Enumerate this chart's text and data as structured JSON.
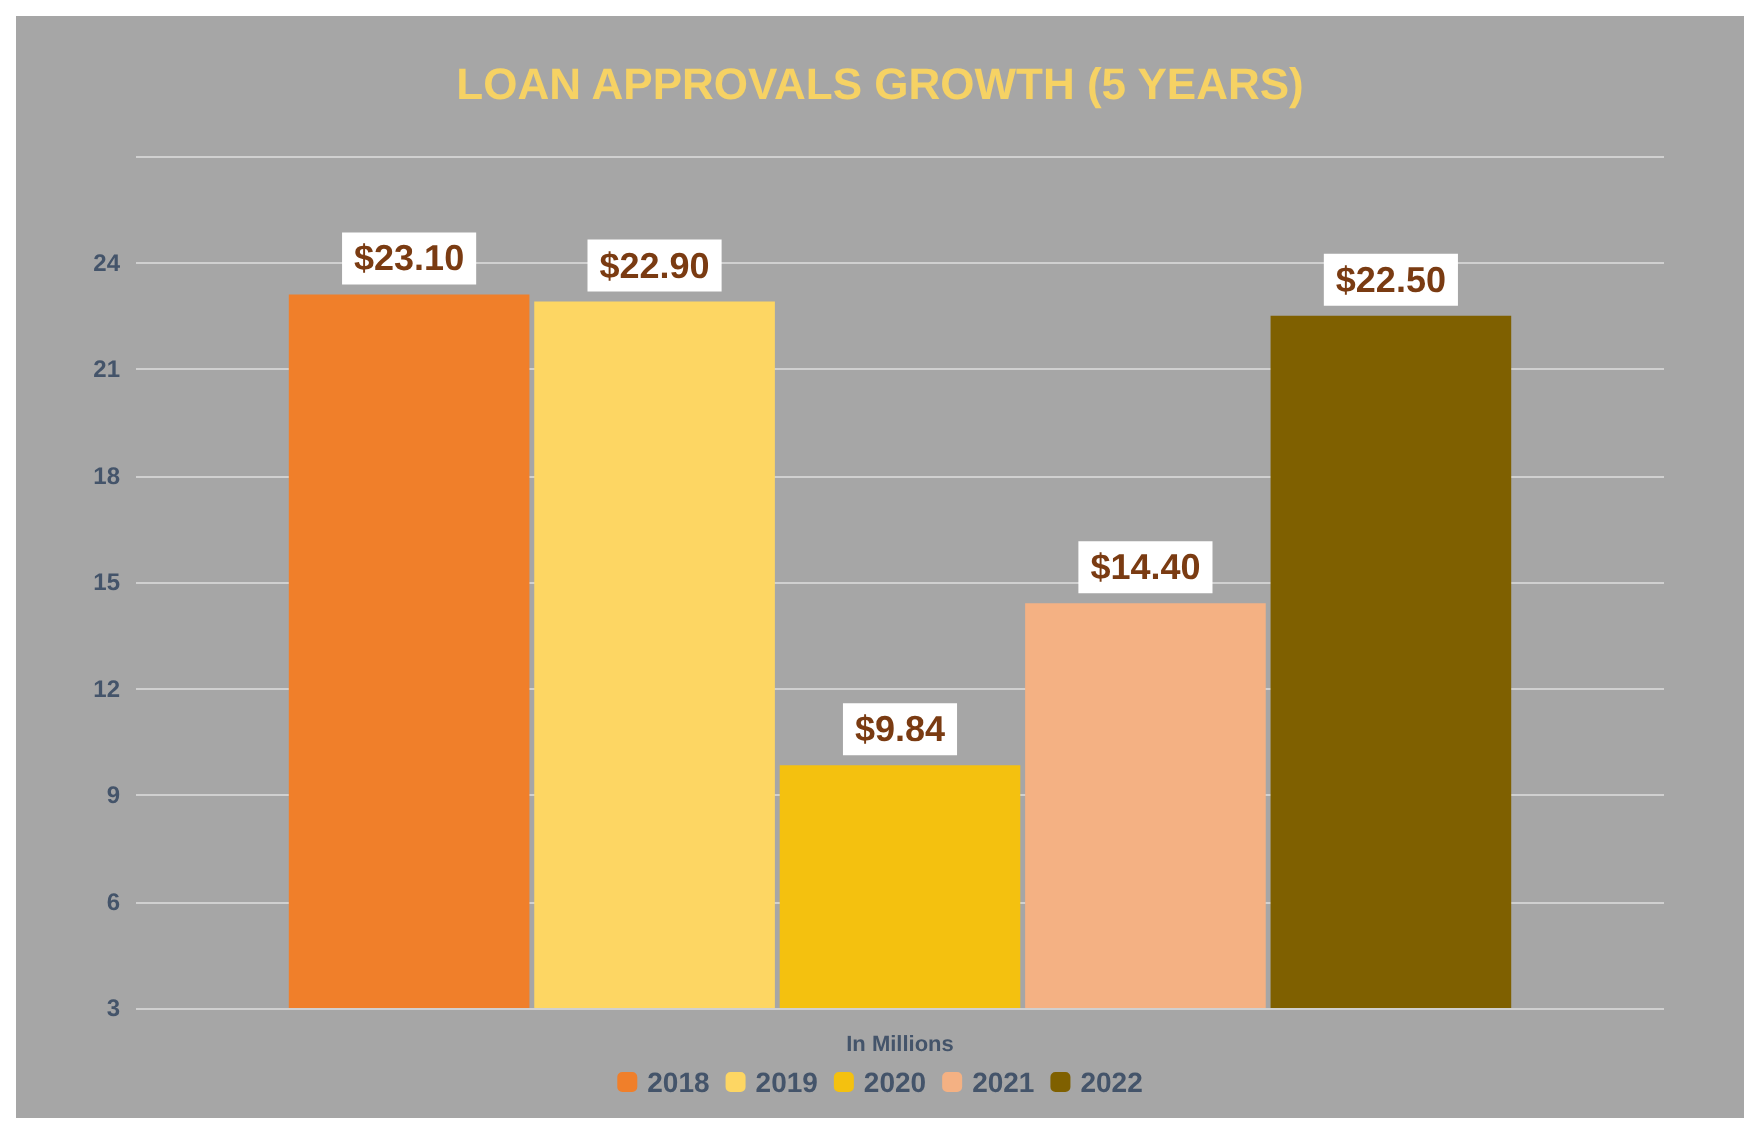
{
  "chart_data": {
    "type": "bar",
    "title": "LOAN APPROVALS GROWTH (5 YEARS)",
    "xlabel": "In Millions",
    "categories": [
      null
    ],
    "series": [
      {
        "name": "2018",
        "color": "#f07f2a",
        "values": [
          23.1
        ],
        "value_labels": [
          "$23.10"
        ]
      },
      {
        "name": "2019",
        "color": "#fdd663",
        "values": [
          22.9
        ],
        "value_labels": [
          "$22.90"
        ]
      },
      {
        "name": "2020",
        "color": "#f4c10f",
        "values": [
          9.84
        ],
        "value_labels": [
          "$9.84"
        ]
      },
      {
        "name": "2021",
        "color": "#f4b183",
        "values": [
          14.4
        ],
        "value_labels": [
          "$14.40"
        ]
      },
      {
        "name": "2022",
        "color": "#7f6000",
        "values": [
          22.5
        ],
        "value_labels": [
          "$22.50"
        ]
      }
    ],
    "ylim": [
      3,
      27
    ],
    "yticks": [
      3,
      6,
      9,
      12,
      15,
      18,
      21,
      24,
      {
        "value": 27,
        "label": null
      }
    ],
    "grid": "y",
    "legend": "bottom"
  }
}
